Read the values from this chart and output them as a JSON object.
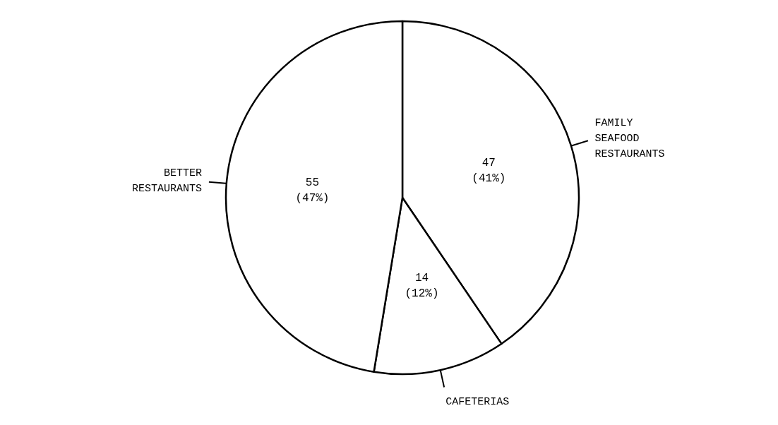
{
  "chart_data": {
    "type": "pie",
    "categories": [
      "FAMILY SEAFOOD RESTAURANTS",
      "CAFETERIAS",
      "BETTER RESTAURANTS"
    ],
    "values": [
      47,
      14,
      55
    ],
    "value_labels": [
      "47\n(41%)",
      "14\n(12%)",
      "55\n(47%)"
    ],
    "colors": [
      "#ffffff",
      "#ffffff",
      "#ffffff"
    ],
    "legend": false
  }
}
